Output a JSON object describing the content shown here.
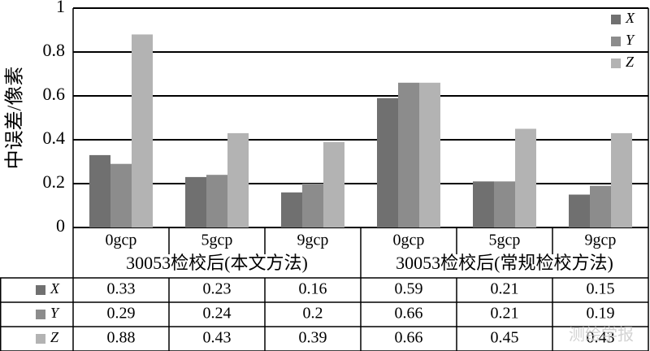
{
  "chart_data": {
    "type": "bar",
    "y_label": "中误差/像素",
    "categories": [
      "0gcp",
      "5gcp",
      "9gcp",
      "0gcp",
      "5gcp",
      "9gcp"
    ],
    "group_labels": [
      "30053检校后(本文方法)",
      "30053检校后(常规检校方法)"
    ],
    "series": [
      {
        "name": "X",
        "color": "#707070",
        "values": [
          0.33,
          0.23,
          0.16,
          0.59,
          0.21,
          0.15
        ]
      },
      {
        "name": "Y",
        "color": "#8c8c8c",
        "values": [
          0.29,
          0.24,
          0.2,
          0.66,
          0.21,
          0.19
        ]
      },
      {
        "name": "Z",
        "color": "#b3b3b3",
        "values": [
          0.88,
          0.43,
          0.39,
          0.66,
          0.45,
          0.43
        ]
      }
    ],
    "ylim": [
      0,
      1
    ],
    "yticks": [
      0,
      0.2,
      0.4,
      0.6,
      0.8,
      1
    ],
    "grid": true,
    "legend": "top-right",
    "watermark": "测绘学报"
  }
}
